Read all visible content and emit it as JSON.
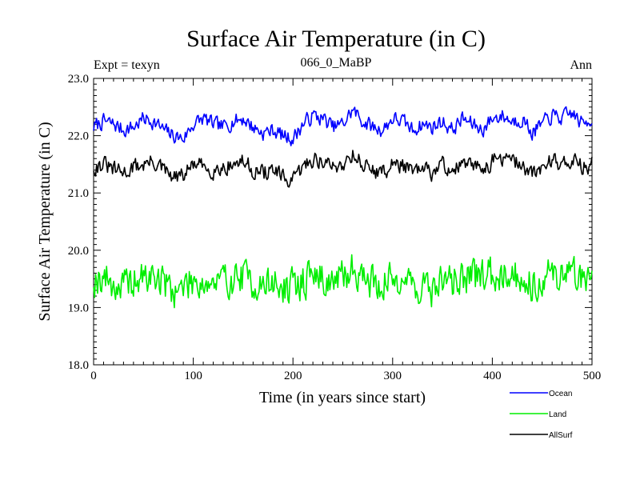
{
  "chart_data": {
    "type": "line",
    "title": "Surface Air Temperature (in C)",
    "subtitle_left": "Expt = texyn",
    "subtitle_center": "066_0_MaBP",
    "subtitle_right": "Ann",
    "xlabel": "Time (in years since start)",
    "ylabel": "Surface Air Temperature (in C)",
    "xlim": [
      0,
      500
    ],
    "ylim": [
      18.0,
      23.0
    ],
    "x_ticks": [
      0,
      100,
      200,
      300,
      400,
      500
    ],
    "y_ticks": [
      "18.0",
      "19.0",
      "20.0",
      "21.0",
      "22.0",
      "23.0"
    ],
    "x_minor_step": 10,
    "y_minor_step": 0.1,
    "grid": false,
    "legend_position": "bottom-right, below plot",
    "series": [
      {
        "name": "Ocean",
        "color": "#0000ff",
        "x": [
          0,
          10,
          20,
          30,
          40,
          50,
          60,
          70,
          80,
          90,
          100,
          110,
          120,
          130,
          140,
          150,
          160,
          170,
          180,
          190,
          200,
          210,
          220,
          230,
          240,
          250,
          260,
          270,
          280,
          290,
          300,
          310,
          320,
          330,
          340,
          350,
          360,
          370,
          380,
          390,
          400,
          410,
          420,
          430,
          440,
          450,
          460,
          470,
          480,
          490,
          500
        ],
        "values": [
          22.15,
          22.25,
          22.2,
          22.1,
          22.15,
          22.3,
          22.25,
          22.1,
          22.0,
          21.95,
          22.2,
          22.3,
          22.2,
          22.15,
          22.25,
          22.3,
          22.15,
          22.05,
          22.1,
          22.0,
          21.95,
          22.2,
          22.35,
          22.3,
          22.15,
          22.2,
          22.45,
          22.25,
          22.15,
          22.1,
          22.3,
          22.25,
          22.1,
          22.2,
          22.15,
          22.25,
          22.1,
          22.3,
          22.2,
          22.1,
          22.3,
          22.35,
          22.25,
          22.3,
          22.05,
          22.2,
          22.35,
          22.3,
          22.4,
          22.2,
          22.3
        ],
        "noise_amp": 0.12,
        "seed": 7
      },
      {
        "name": "Land",
        "color": "#00ee00",
        "x": [
          0,
          10,
          20,
          30,
          40,
          50,
          60,
          70,
          80,
          90,
          100,
          110,
          120,
          130,
          140,
          150,
          160,
          170,
          180,
          190,
          200,
          210,
          220,
          230,
          240,
          250,
          260,
          270,
          280,
          290,
          300,
          310,
          320,
          330,
          340,
          350,
          360,
          370,
          380,
          390,
          400,
          410,
          420,
          430,
          440,
          450,
          460,
          470,
          480,
          490,
          500
        ],
        "values": [
          19.5,
          19.55,
          19.4,
          19.35,
          19.45,
          19.5,
          19.55,
          19.45,
          19.3,
          19.35,
          19.5,
          19.45,
          19.4,
          19.45,
          19.5,
          19.55,
          19.45,
          19.35,
          19.45,
          19.3,
          19.35,
          19.45,
          19.6,
          19.5,
          19.45,
          19.5,
          19.7,
          19.55,
          19.45,
          19.4,
          19.5,
          19.55,
          19.4,
          19.35,
          19.3,
          19.5,
          19.45,
          19.55,
          19.5,
          19.6,
          19.55,
          19.65,
          19.6,
          19.5,
          19.4,
          19.5,
          19.6,
          19.55,
          19.65,
          19.5,
          19.6
        ],
        "noise_amp": 0.28,
        "seed": 19
      },
      {
        "name": "AllSurf",
        "color": "#000000",
        "x": [
          0,
          10,
          20,
          30,
          40,
          50,
          60,
          70,
          80,
          90,
          100,
          110,
          120,
          130,
          140,
          150,
          160,
          170,
          180,
          190,
          200,
          210,
          220,
          230,
          240,
          250,
          260,
          270,
          280,
          290,
          300,
          310,
          320,
          330,
          340,
          350,
          360,
          370,
          380,
          390,
          400,
          410,
          420,
          430,
          440,
          450,
          460,
          470,
          480,
          490,
          500
        ],
        "values": [
          21.45,
          21.5,
          21.4,
          21.35,
          21.45,
          21.5,
          21.55,
          21.4,
          21.25,
          21.3,
          21.5,
          21.45,
          21.4,
          21.45,
          21.5,
          21.55,
          21.4,
          21.35,
          21.4,
          21.25,
          21.2,
          21.45,
          21.6,
          21.55,
          21.45,
          21.5,
          21.7,
          21.5,
          21.4,
          21.35,
          21.5,
          21.5,
          21.35,
          21.4,
          21.35,
          21.5,
          21.4,
          21.5,
          21.45,
          21.45,
          21.55,
          21.6,
          21.55,
          21.5,
          21.3,
          21.45,
          21.6,
          21.5,
          21.6,
          21.45,
          21.5
        ],
        "noise_amp": 0.13,
        "seed": 31
      }
    ]
  }
}
